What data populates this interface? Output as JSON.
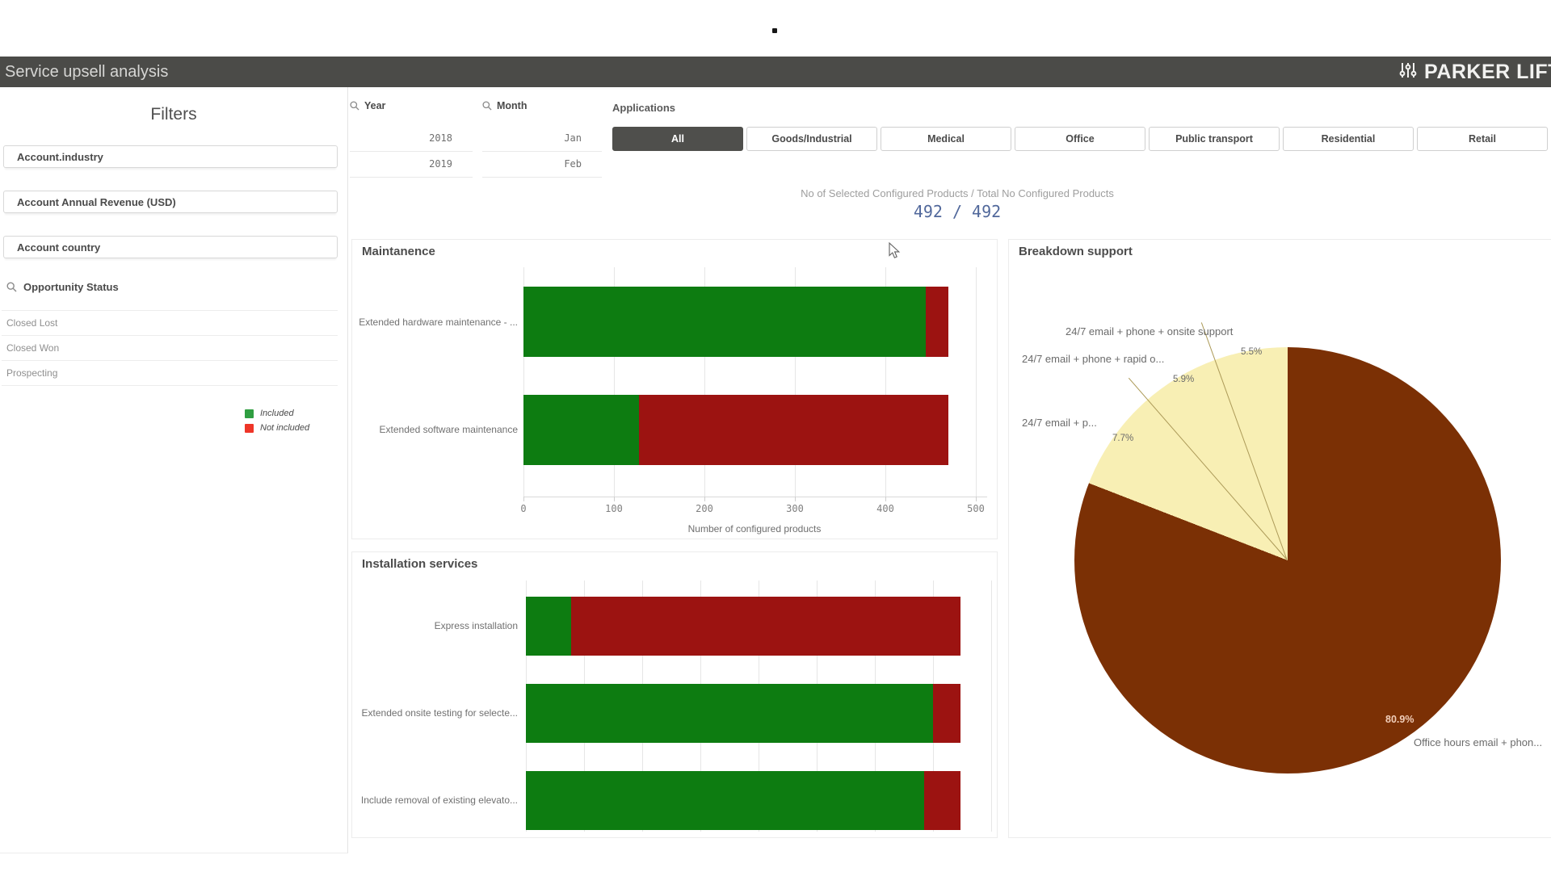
{
  "header": {
    "title": "Service upsell analysis",
    "brand": "PARKER LIFTS",
    "artifact_dot": "."
  },
  "filters": {
    "heading": "Filters",
    "field_boxes": [
      "Account.industry",
      "Account Annual Revenue (USD)",
      "Account country"
    ],
    "opportunity_status": {
      "label": "Opportunity Status",
      "items": [
        "Closed Lost",
        "Closed Won",
        "Prospecting"
      ]
    },
    "legend": {
      "items": [
        {
          "label": "Included",
          "color": "#2f9e41"
        },
        {
          "label": "Not included",
          "color": "#ee3528"
        }
      ]
    }
  },
  "year_filter": {
    "label": "Year",
    "items": [
      "2018",
      "2019"
    ]
  },
  "month_filter": {
    "label": "Month",
    "items": [
      "Jan",
      "Feb"
    ]
  },
  "applications": {
    "label": "Applications",
    "selected": "All",
    "tabs": [
      "All",
      "Goods/Industrial",
      "Medical",
      "Office",
      "Public transport",
      "Residential",
      "Retail"
    ]
  },
  "kpi": {
    "label": "No of Selected Configured Products / Total No Configured Products",
    "value": "492 / 492"
  },
  "chart_data": [
    {
      "type": "bar",
      "orientation": "horizontal",
      "title": "Maintanence",
      "categories": [
        "Extended hardware maintenance - ...",
        "Extended software maintenance"
      ],
      "series": [
        {
          "name": "Included",
          "color": "#0d7c11",
          "values": [
            445,
            128
          ]
        },
        {
          "name": "Not included",
          "color": "#9c1311",
          "values": [
            25,
            342
          ]
        }
      ],
      "xlabel": "Number of configured products",
      "xticks": [
        0,
        100,
        200,
        300,
        400,
        500
      ],
      "xlim": [
        0,
        500
      ],
      "grid": true,
      "legend_position": "left-sidebar"
    },
    {
      "type": "bar",
      "orientation": "horizontal",
      "title": "Installation services",
      "categories": [
        "Express installation",
        "Extended onsite testing for selecte...",
        "Include removal of existing elevato..."
      ],
      "series": [
        {
          "name": "Included",
          "color": "#0d7c11",
          "values": [
            50,
            450,
            440
          ]
        },
        {
          "name": "Not included",
          "color": "#9c1311",
          "values": [
            430,
            30,
            40
          ]
        }
      ],
      "xlim": [
        0,
        500
      ],
      "grid": true,
      "axis_visible": false
    },
    {
      "type": "pie",
      "title": "Breakdown support",
      "slices": [
        {
          "label": "Office hours email + phon...",
          "pct": 80.9,
          "color": "#7b3005"
        },
        {
          "label": "24/7 email + p...",
          "pct": 7.7,
          "color": "#f8efb4"
        },
        {
          "label": "24/7 email + phone + rapid o...",
          "pct": 5.9,
          "color": "#f8efb4"
        },
        {
          "label": "24/7 email + phone + onsite support",
          "pct": 5.5,
          "color": "#f8efb4"
        }
      ]
    }
  ]
}
